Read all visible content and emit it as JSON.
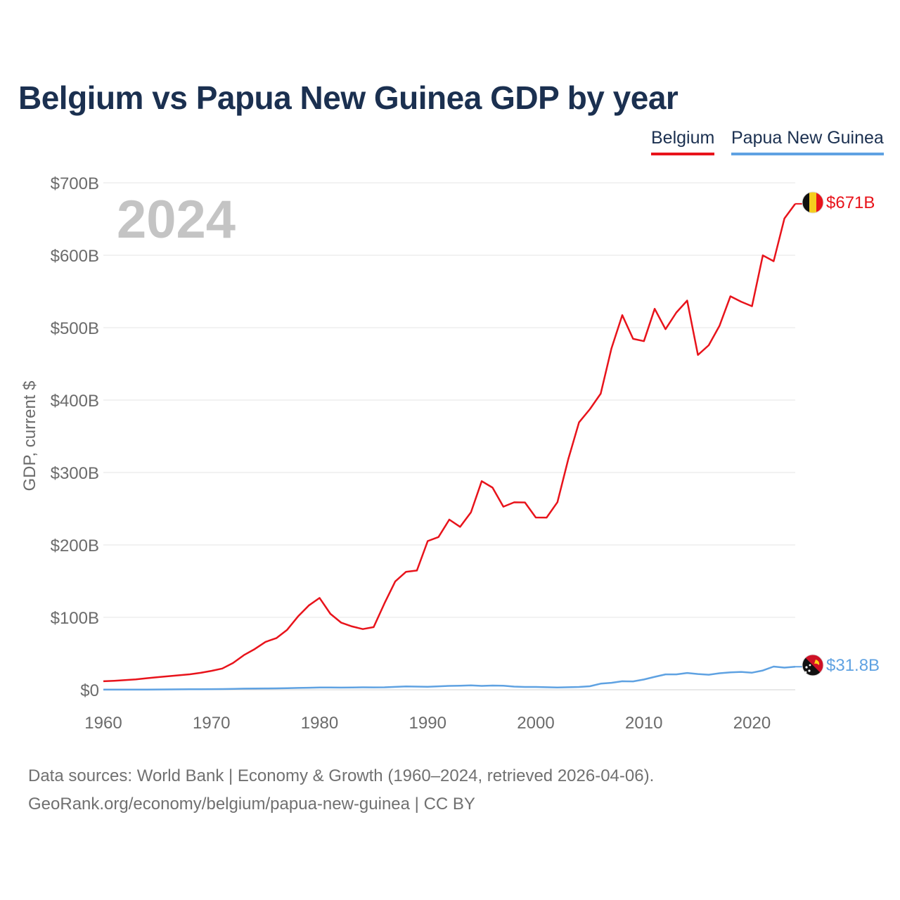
{
  "title": "Belgium vs Papua New Guinea GDP by year",
  "legend": {
    "belgium": "Belgium",
    "png": "Papua New Guinea"
  },
  "year_watermark": "2024",
  "footer": {
    "line1": "Data sources: World Bank | Economy & Growth (1960–2024, retrieved 2026-04-06).",
    "line2": "GeoRank.org/economy/belgium/papua-new-guinea | CC BY"
  },
  "colors": {
    "belgium": "#e8131b",
    "png": "#5fa2e2",
    "title": "#1b3050",
    "axis_text": "#6b6b6b",
    "grid": "#e6e6e6"
  },
  "chart_data": {
    "type": "line",
    "title": "Belgium vs Papua New Guinea GDP by year",
    "xlabel": "",
    "ylabel": "GDP, current $",
    "xlim": [
      1960,
      2024
    ],
    "ylim": [
      0,
      700
    ],
    "y_unit": "billion USD",
    "x_ticks": [
      1960,
      1970,
      1980,
      1990,
      2000,
      2010,
      2020
    ],
    "x_tick_labels": [
      "1960",
      "1970",
      "1980",
      "1990",
      "2000",
      "2010",
      "2020"
    ],
    "y_ticks": [
      0,
      100,
      200,
      300,
      400,
      500,
      600,
      700
    ],
    "y_tick_labels": [
      "$0",
      "$100B",
      "$200B",
      "$300B",
      "$400B",
      "$500B",
      "$600B",
      "$700B"
    ],
    "grid": true,
    "legend_position": "top-right",
    "x": [
      1960,
      1961,
      1962,
      1963,
      1964,
      1965,
      1966,
      1967,
      1968,
      1969,
      1970,
      1971,
      1972,
      1973,
      1974,
      1975,
      1976,
      1977,
      1978,
      1979,
      1980,
      1981,
      1982,
      1983,
      1984,
      1985,
      1986,
      1987,
      1988,
      1989,
      1990,
      1991,
      1992,
      1993,
      1994,
      1995,
      1996,
      1997,
      1998,
      1999,
      2000,
      2001,
      2002,
      2003,
      2004,
      2005,
      2006,
      2007,
      2008,
      2009,
      2010,
      2011,
      2012,
      2013,
      2014,
      2015,
      2016,
      2017,
      2018,
      2019,
      2020,
      2021,
      2022,
      2023,
      2024
    ],
    "series": [
      {
        "name": "Belgium",
        "values": [
          11.7,
          12.4,
          13.3,
          14.3,
          15.9,
          17.4,
          18.7,
          20.0,
          21.4,
          23.4,
          26.1,
          29.3,
          37.0,
          47.9,
          56.2,
          66.1,
          71.3,
          82.8,
          101.2,
          116.3,
          126.8,
          104.9,
          92.6,
          87.5,
          83.8,
          86.5,
          119.3,
          149.6,
          162.9,
          164.7,
          205.3,
          210.9,
          235.0,
          225.0,
          245.0,
          288.1,
          279.1,
          252.8,
          258.8,
          258.6,
          237.9,
          237.8,
          259.0,
          318.1,
          369.2,
          387.4,
          408.8,
          471.3,
          517.3,
          484.6,
          481.4,
          526.0,
          497.9,
          520.9,
          537.4,
          462.3,
          475.7,
          502.8,
          543.3,
          535.8,
          529.6,
          599.8,
          591.7,
          650.7,
          671.0
        ]
      },
      {
        "name": "Papua New Guinea",
        "values": [
          0.2,
          0.2,
          0.2,
          0.3,
          0.3,
          0.4,
          0.5,
          0.6,
          0.7,
          0.8,
          0.9,
          1.0,
          1.2,
          1.6,
          1.7,
          1.8,
          1.9,
          2.1,
          2.5,
          2.8,
          3.1,
          3.2,
          3.0,
          3.2,
          3.4,
          3.3,
          3.4,
          4.0,
          4.6,
          4.4,
          4.2,
          4.8,
          5.3,
          5.6,
          6.0,
          5.3,
          5.8,
          5.6,
          4.4,
          3.9,
          3.9,
          3.5,
          3.2,
          3.5,
          3.9,
          4.9,
          8.4,
          9.6,
          11.7,
          11.6,
          14.2,
          17.9,
          21.3,
          21.3,
          23.2,
          21.7,
          20.8,
          22.8,
          24.1,
          24.7,
          23.6,
          26.6,
          32.0,
          30.6,
          31.8
        ]
      }
    ],
    "end_labels": [
      "$671B",
      "$31.8B"
    ]
  }
}
